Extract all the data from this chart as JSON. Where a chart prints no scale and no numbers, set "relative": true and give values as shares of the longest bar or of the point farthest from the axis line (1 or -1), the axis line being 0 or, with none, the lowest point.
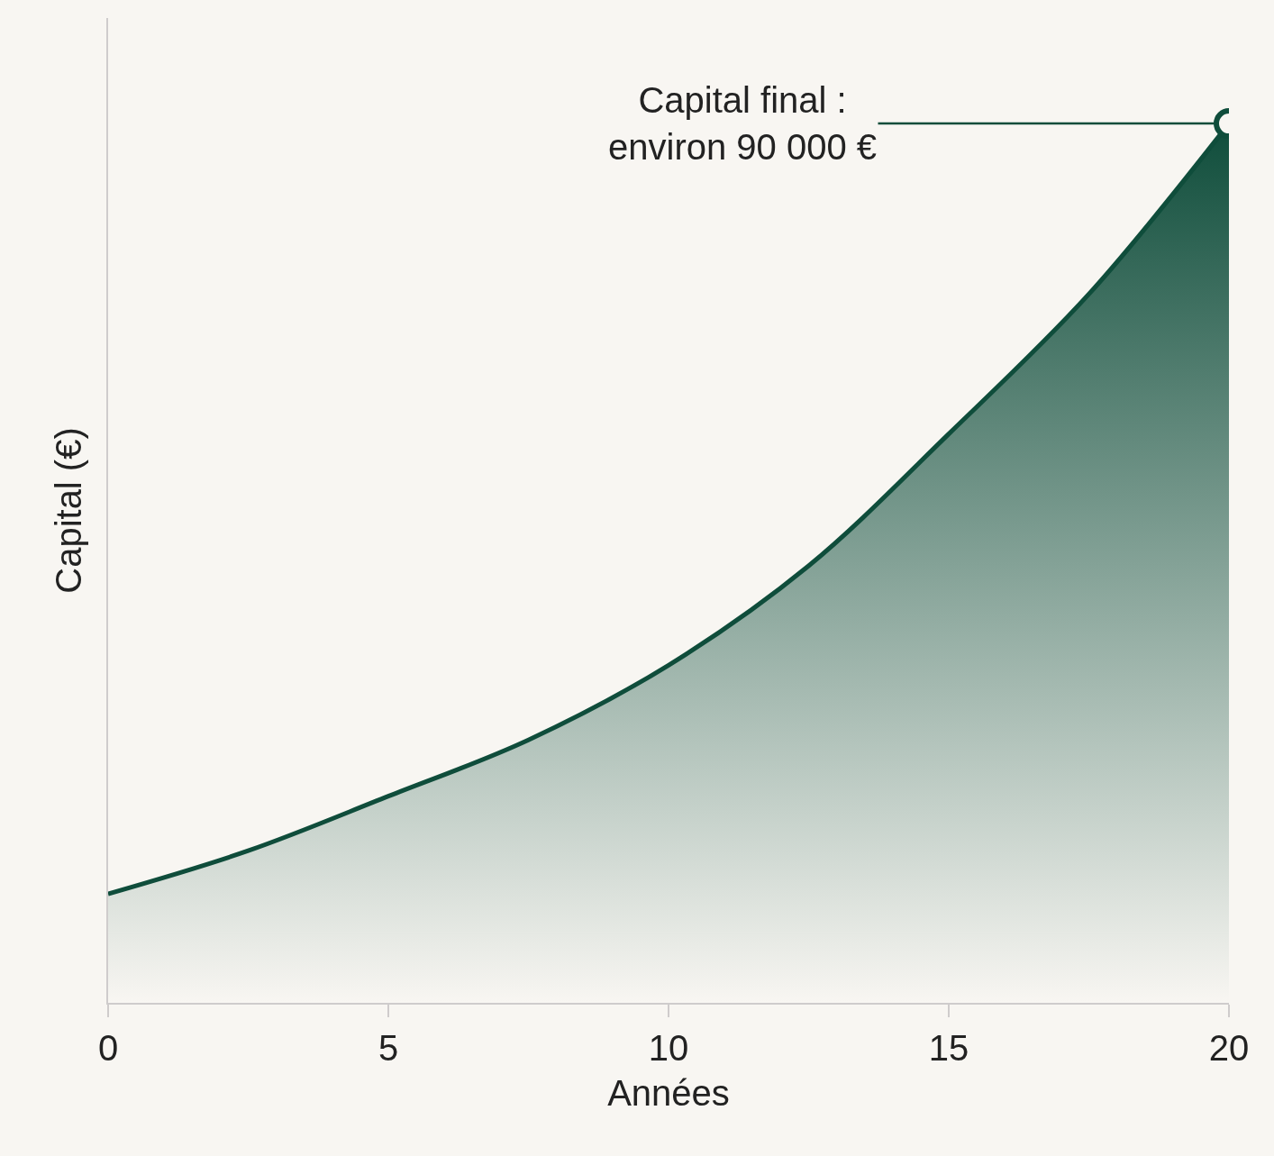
{
  "chart_data": {
    "type": "area",
    "relative": true,
    "x": [
      0,
      2.5,
      5,
      7.5,
      10,
      12.5,
      15,
      17.5,
      20
    ],
    "series": [
      {
        "color": "#0f4d3b",
        "values": [
          0.124,
          0.173,
          0.235,
          0.299,
          0.384,
          0.497,
          0.647,
          0.806,
          1.0
        ]
      }
    ],
    "xlim": [
      0,
      20
    ],
    "xticks": [
      0,
      5,
      10,
      15,
      20
    ],
    "tick_labels": "x",
    "xlabel": "Années",
    "ylabel": "Capital (€)",
    "annotations": [
      {
        "text": "Capital final :\nenviron 90 000 €",
        "x": 20,
        "y": 1
      }
    ],
    "grid": false,
    "marker": "none",
    "line_style": "solid"
  }
}
